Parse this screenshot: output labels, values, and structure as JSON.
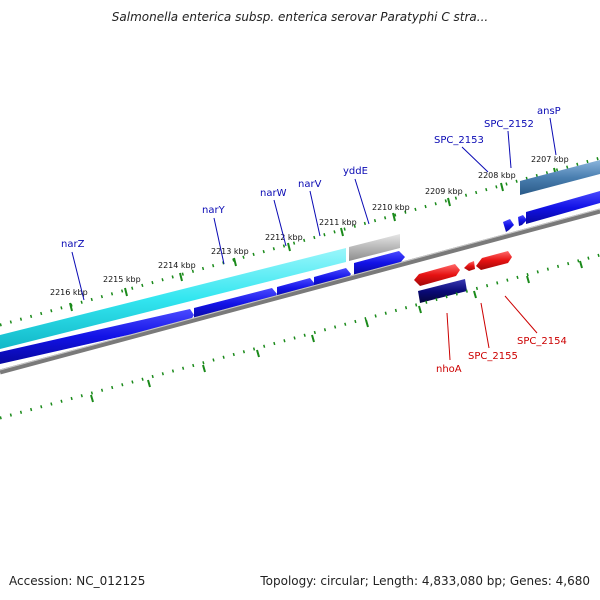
{
  "header": {
    "title": "Salmonella enterica subsp. enterica serovar Paratyphi C stra..."
  },
  "footer": {
    "accession": "Accession: NC_012125",
    "topology": "Topology: circular; Length: 4,833,080 bp; Genes: 4,680"
  },
  "colors": {
    "forward_gene": "#1212e6",
    "reverse_gene": "#e61212",
    "reverse_gene_dark": "#0a0a78",
    "cyan_band": "#33e6f0",
    "gray_band": "#b8b8b8",
    "steelblue_band": "#4a7fb0",
    "backbone": "#7a7a7a",
    "tick": "#1a8a1a",
    "forward_label": "#0a0ab4",
    "reverse_label": "#cc0000"
  },
  "ticks": {
    "labels": [
      "2216 kbp",
      "2215 kbp",
      "2214 kbp",
      "2213 kbp",
      "2212 kbp",
      "2211 kbp",
      "2210 kbp",
      "2209 kbp",
      "2208 kbp",
      "2207 kbp"
    ]
  },
  "gene_labels": {
    "forward": [
      "narZ",
      "narY",
      "narW",
      "narV",
      "yddE",
      "SPC_2153",
      "SPC_2152",
      "ansP"
    ],
    "reverse": [
      "nhoA",
      "SPC_2155",
      "SPC_2154"
    ]
  }
}
